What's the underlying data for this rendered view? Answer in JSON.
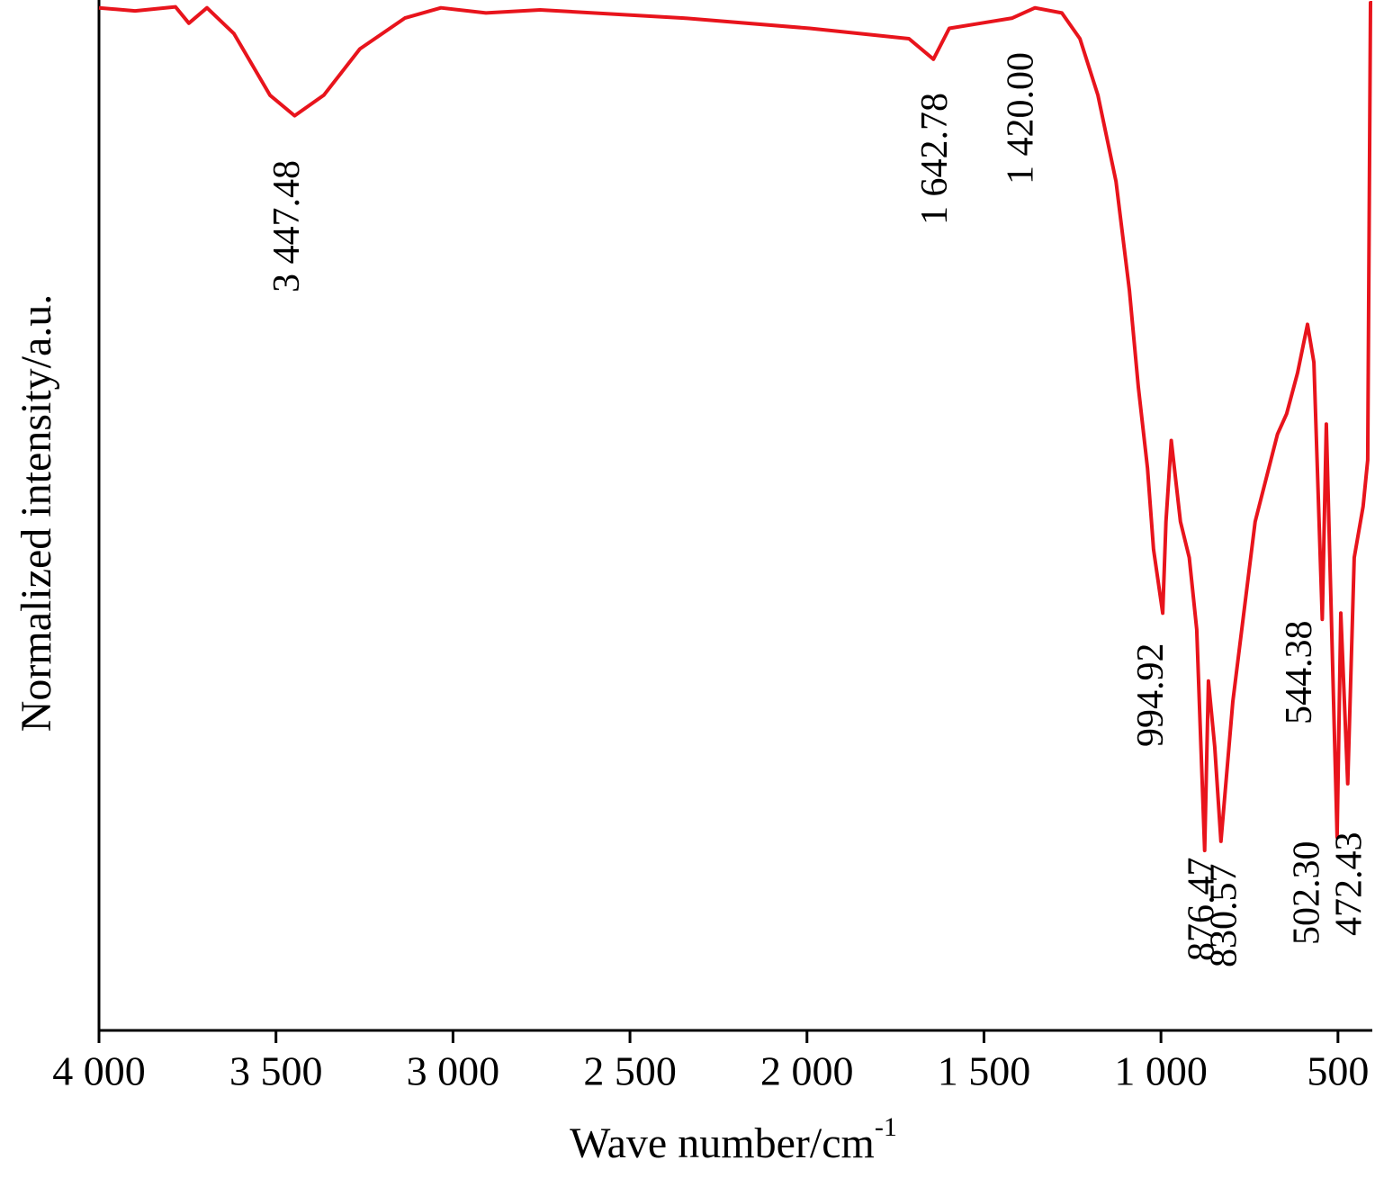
{
  "chart_data": {
    "type": "line",
    "x_label": "Wave number/cm",
    "x_label_superscript": "-1",
    "y_label": "Normalized intensity/a.u.",
    "xlim": [
      4000,
      403
    ],
    "ylim": [
      0,
      1
    ],
    "xticks": [
      {
        "value": 4000,
        "label": "4 000"
      },
      {
        "value": 3500,
        "label": "3 500"
      },
      {
        "value": 3000,
        "label": "3 000"
      },
      {
        "value": 2500,
        "label": "2 500"
      },
      {
        "value": 2000,
        "label": "2 000"
      },
      {
        "value": 1500,
        "label": "1 500"
      },
      {
        "value": 1000,
        "label": "1 000"
      },
      500
    ],
    "series": [
      {
        "color": "#e8141c",
        "x": [
          4000,
          3898,
          3784,
          3746,
          3695,
          3619,
          3517,
          3447.48,
          3365,
          3263,
          3136,
          3034,
          2907,
          2754,
          2348,
          1992,
          1712,
          1642.78,
          1598,
          1509,
          1420,
          1356,
          1280,
          1229,
          1178,
          1127,
          1089,
          1064,
          1038,
          1021,
          994.92,
          986,
          971,
          945,
          920,
          899,
          876.47,
          866,
          848,
          830.57,
          797,
          734,
          671,
          645,
          614,
          586,
          568,
          544.38,
          533,
          502.3,
          492,
          472.43,
          454,
          429,
          416,
          408,
          403
        ],
        "values": [
          0.995,
          0.992,
          0.996,
          0.98,
          0.995,
          0.97,
          0.91,
          0.89,
          0.91,
          0.955,
          0.985,
          0.995,
          0.99,
          0.993,
          0.985,
          0.975,
          0.965,
          0.945,
          0.975,
          0.98,
          0.985,
          0.995,
          0.99,
          0.965,
          0.91,
          0.826,
          0.72,
          0.626,
          0.547,
          0.468,
          0.406,
          0.495,
          0.574,
          0.495,
          0.46,
          0.39,
          0.175,
          0.34,
          0.276,
          0.184,
          0.32,
          0.495,
          0.58,
          0.6,
          0.64,
          0.687,
          0.65,
          0.4,
          0.59,
          0.188,
          0.406,
          0.24,
          0.46,
          0.51,
          0.555,
          1.0,
          1.0
        ]
      }
    ],
    "annotations": [
      {
        "label": "3 447.48",
        "x": 3447.48
      },
      {
        "label": "1 642.78",
        "x": 1642.78
      },
      {
        "label": "1 420.00",
        "x": 1420.0
      },
      {
        "label": "994.92",
        "x": 994.92
      },
      {
        "label": "876.47",
        "x": 876.47
      },
      {
        "label": "830.57",
        "x": 830.57
      },
      {
        "label": "544.38",
        "x": 544.38
      },
      {
        "label": "502.30",
        "x": 502.3
      },
      {
        "label": "472.43",
        "x": 472.43
      }
    ]
  }
}
